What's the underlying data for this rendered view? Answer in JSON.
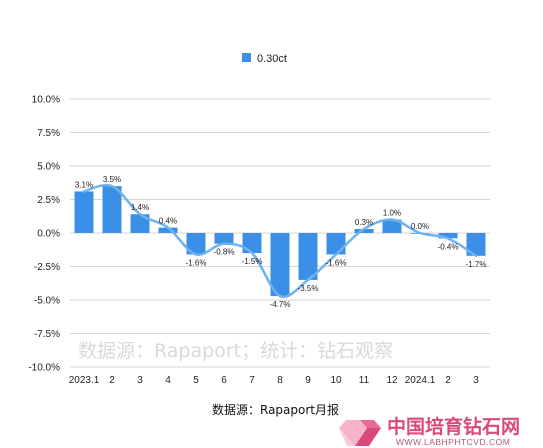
{
  "chart_data": {
    "type": "bar",
    "categories": [
      "2023.1",
      "2",
      "3",
      "4",
      "5",
      "6",
      "7",
      "8",
      "9",
      "10",
      "11",
      "12",
      "2024.1",
      "2",
      "3"
    ],
    "series": [
      {
        "name": "0.30ct",
        "values": [
          3.1,
          3.5,
          1.4,
          0.4,
          -1.6,
          -0.8,
          -1.5,
          -4.7,
          -3.5,
          -1.6,
          0.3,
          1.0,
          0.0,
          -0.4,
          -1.7
        ],
        "labels": [
          "3.1%",
          "3.5%",
          "1.4%",
          "0.4%",
          "-1.6%",
          "-0.8%",
          "-1.5%",
          "-4.7%",
          "-3.5%",
          "-1.6%",
          "0.3%",
          "1.0%",
          "0.0%",
          "-0.4%",
          "-1.7%"
        ],
        "color": "#3b8fe6"
      }
    ],
    "trendline": {
      "smoothed": true,
      "color": "#6db3f0"
    },
    "ylim": [
      -10,
      10
    ],
    "yticks": [
      10,
      7.5,
      5,
      2.5,
      0,
      -2.5,
      -5,
      -7.5,
      -10
    ],
    "ytick_labels": [
      "10.0%",
      "7.5%",
      "5.0%",
      "2.5%",
      "0.0%",
      "-2.5%",
      "-5.0%",
      "-7.5%",
      "-10.0%"
    ],
    "grid": true,
    "legend": "top-center",
    "source_note": "数据源：Rapaport月报",
    "watermark": "数据源：Rapaport；统计：钻石观察"
  },
  "logo": {
    "name": "中国培育钻石网",
    "url": "WWW.LABHPHTCVD.COM",
    "colors": {
      "primary": "#d94a7a",
      "secondary": "#f2a3c0"
    }
  }
}
